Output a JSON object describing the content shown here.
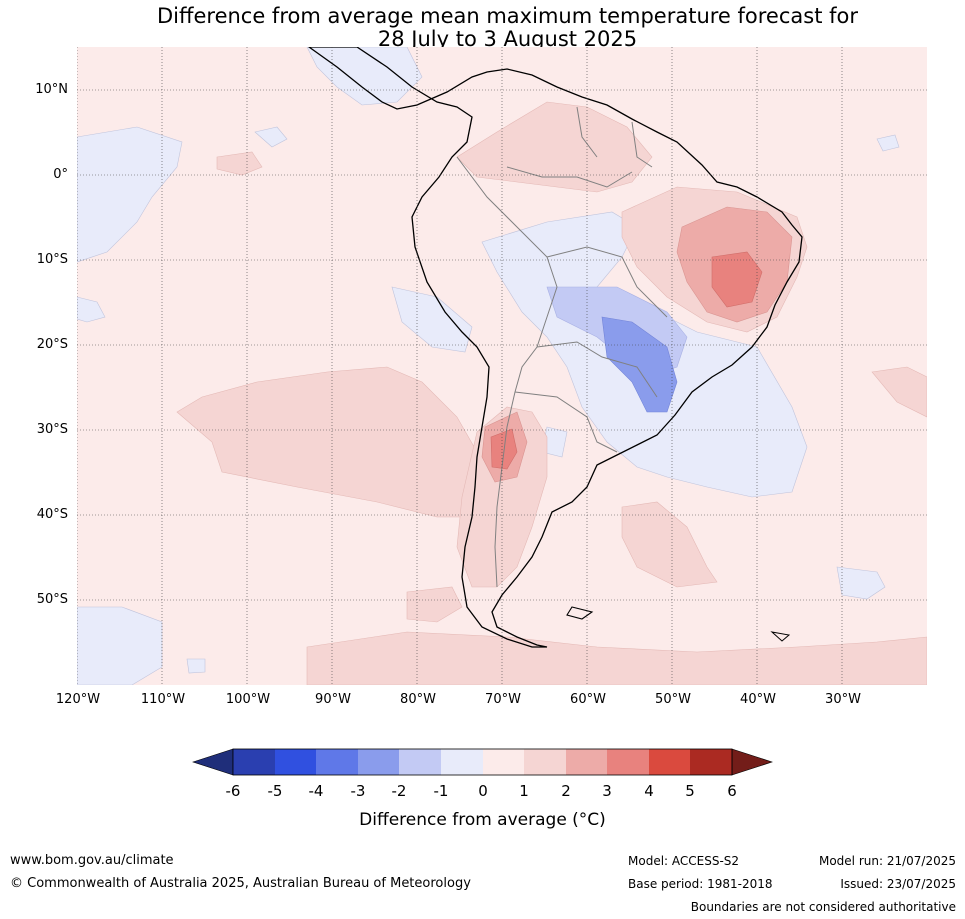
{
  "title": {
    "line1": "Difference from average mean maximum temperature forecast for",
    "line2": "28 July to 3 August 2025"
  },
  "map": {
    "latitude_labels": [
      "10°N",
      "0°",
      "10°S",
      "20°S",
      "30°S",
      "40°S",
      "50°S"
    ],
    "longitude_labels": [
      "120°W",
      "110°W",
      "100°W",
      "90°W",
      "80°W",
      "70°W",
      "60°W",
      "50°W",
      "40°W",
      "30°W"
    ],
    "background_color": "#fcebea",
    "coastline_color": "#000000",
    "border_color": "#808080"
  },
  "colorbar": {
    "ticks": [
      "-6",
      "-5",
      "-4",
      "-3",
      "-2",
      "-1",
      "0",
      "1",
      "2",
      "3",
      "4",
      "5",
      "6"
    ],
    "colors": [
      "#1f2e7a",
      "#2a3fb0",
      "#3050e0",
      "#5f78e8",
      "#8a9cec",
      "#c3caf4",
      "#e8ebfa",
      "#fcebea",
      "#f5d5d3",
      "#edaba8",
      "#e8827e",
      "#da4a3e",
      "#ab2a22",
      "#731d19"
    ],
    "label": "Difference from average (°C)"
  },
  "footer": {
    "website": "www.bom.gov.au/climate",
    "copyright": "© Commonwealth of Australia 2025, Australian Bureau of Meteorology",
    "model": "Model: ACCESS-S2",
    "base_period": "Base period: 1981-2018",
    "model_run": "Model run: 21/07/2025",
    "issued": "Issued: 23/07/2025",
    "disclaimer": "Boundaries are not considered authoritative"
  }
}
